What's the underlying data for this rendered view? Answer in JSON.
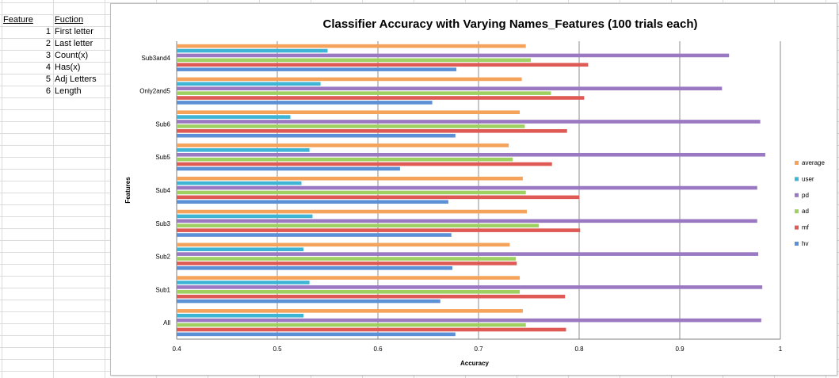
{
  "sheet": {
    "feature_header": "Feature",
    "function_header": "Fuction",
    "rows": [
      {
        "num": "1",
        "label": "First letter"
      },
      {
        "num": "2",
        "label": "Last letter"
      },
      {
        "num": "3",
        "label": "Count(x)"
      },
      {
        "num": "4",
        "label": "Has(x)"
      },
      {
        "num": "5",
        "label": "Adj Letters"
      },
      {
        "num": "6",
        "label": "Length"
      }
    ]
  },
  "chart_data": {
    "type": "bar",
    "orientation": "horizontal",
    "title": "Classifier Accuracy with Varying Names_Features (100 trials each)",
    "xlabel": "Accuracy",
    "ylabel": "Features",
    "xlim": [
      0.4,
      1
    ],
    "xticks": [
      "0.4",
      "0.5",
      "0.6",
      "0.7",
      "0.8",
      "0.9",
      "1"
    ],
    "grid": true,
    "legend_position": "right",
    "categories": [
      "All",
      "Sub1",
      "Sub2",
      "Sub3",
      "Sub4",
      "Sub5",
      "Sub6",
      "Only2and5",
      "Sub3and4"
    ],
    "series": [
      {
        "name": "hv",
        "color": "#5b8fd6",
        "values": [
          0.677,
          0.662,
          0.674,
          0.673,
          0.67,
          0.622,
          0.677,
          0.654,
          0.678
        ]
      },
      {
        "name": "mf",
        "color": "#e05a55",
        "values": [
          0.787,
          0.786,
          0.738,
          0.801,
          0.8,
          0.773,
          0.788,
          0.805,
          0.809
        ]
      },
      {
        "name": "ad",
        "color": "#9fd062",
        "values": [
          0.747,
          0.741,
          0.737,
          0.76,
          0.747,
          0.734,
          0.746,
          0.772,
          0.752
        ]
      },
      {
        "name": "pd",
        "color": "#9a78c2",
        "values": [
          0.981,
          0.982,
          0.978,
          0.977,
          0.977,
          0.985,
          0.98,
          0.942,
          0.949
        ]
      },
      {
        "name": "user",
        "color": "#3fb5d6",
        "values": [
          0.526,
          0.532,
          0.526,
          0.535,
          0.524,
          0.532,
          0.513,
          0.543,
          0.55
        ]
      },
      {
        "name": "average",
        "color": "#f5a35a",
        "values": [
          0.744,
          0.741,
          0.731,
          0.748,
          0.744,
          0.73,
          0.741,
          0.743,
          0.747
        ]
      }
    ],
    "legend_order": [
      "average",
      "user",
      "pd",
      "ad",
      "mf",
      "hv"
    ]
  }
}
